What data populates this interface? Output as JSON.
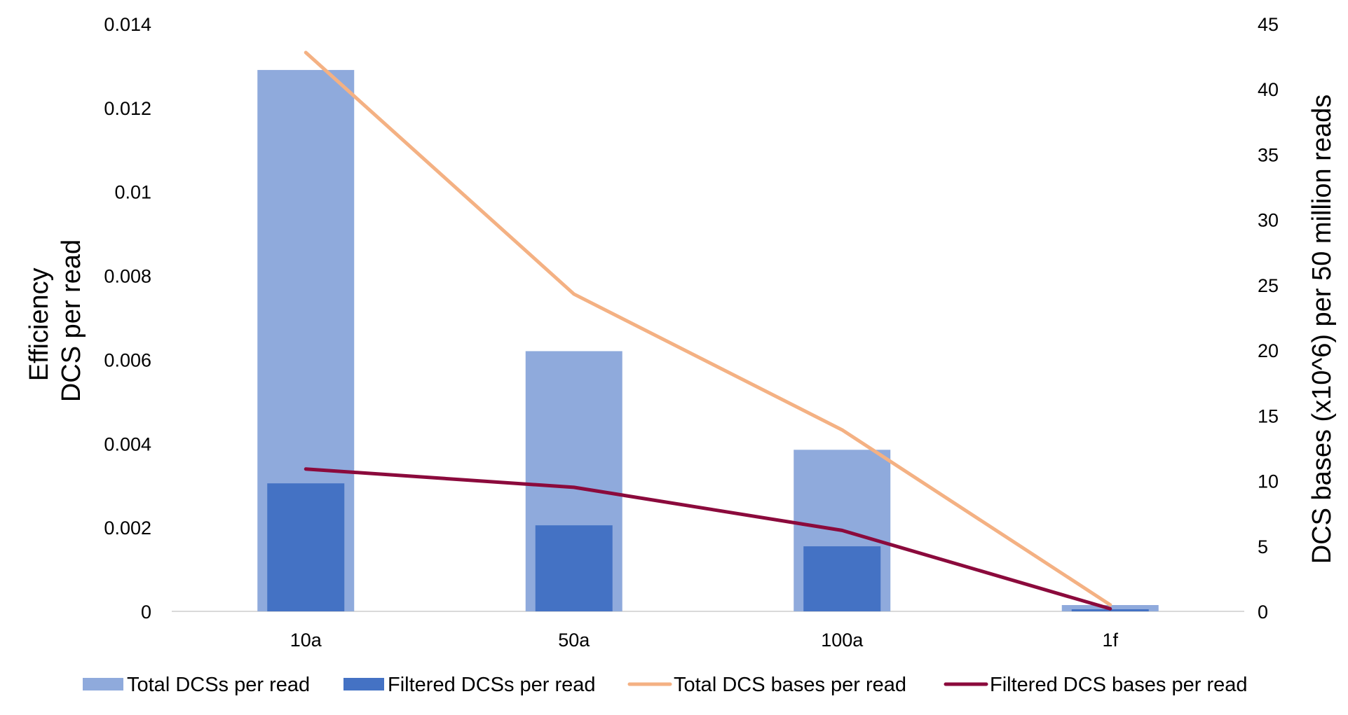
{
  "chart_data": {
    "type": "bar",
    "categories": [
      "10a",
      "50a",
      "100a",
      "1f"
    ],
    "series": [
      {
        "name": "Total DCSs per read",
        "kind": "bar",
        "axis": "left",
        "color": "#8FAADC",
        "values": [
          0.0129,
          0.0062,
          0.00385,
          0.00015
        ]
      },
      {
        "name": "Filtered DCSs per read",
        "kind": "bar",
        "axis": "left",
        "color": "#4472C4",
        "values": [
          0.00305,
          0.00205,
          0.00155,
          5e-05
        ]
      },
      {
        "name": "Total DCS bases per read",
        "kind": "line",
        "axis": "right",
        "color": "#F4B183",
        "values": [
          42.8,
          24.3,
          13.9,
          0.5
        ]
      },
      {
        "name": "Filtered DCS bases per read",
        "kind": "line",
        "axis": "right",
        "color": "#8B0A3C",
        "values": [
          10.9,
          9.5,
          6.2,
          0.2
        ]
      }
    ],
    "y_left": {
      "label_lines": [
        "Efficiency",
        "DCS per read"
      ],
      "ylim": [
        0,
        0.014
      ],
      "ticks": [
        "0",
        "0.002",
        "0.004",
        "0.006",
        "0.008",
        "0.01",
        "0.012",
        "0.014"
      ]
    },
    "y_right": {
      "label": "DCS bases (x10^6) per 50 million reads",
      "ylim": [
        0,
        45
      ],
      "ticks": [
        "0",
        "5",
        "10",
        "15",
        "20",
        "25",
        "30",
        "35",
        "40",
        "45"
      ]
    },
    "grid": false,
    "legend_position": "bottom"
  }
}
